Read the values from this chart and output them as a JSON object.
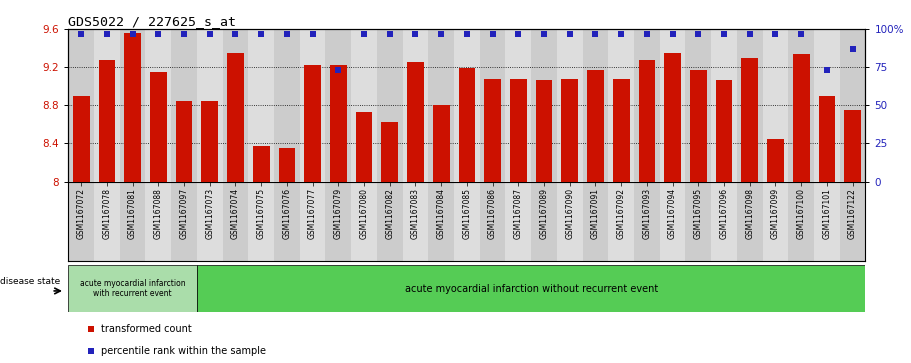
{
  "title": "GDS5022 / 227625_s_at",
  "samples": [
    "GSM1167072",
    "GSM1167078",
    "GSM1167081",
    "GSM1167088",
    "GSM1167097",
    "GSM1167073",
    "GSM1167074",
    "GSM1167075",
    "GSM1167076",
    "GSM1167077",
    "GSM1167079",
    "GSM1167080",
    "GSM1167082",
    "GSM1167083",
    "GSM1167084",
    "GSM1167085",
    "GSM1167086",
    "GSM1167087",
    "GSM1167089",
    "GSM1167090",
    "GSM1167091",
    "GSM1167092",
    "GSM1167093",
    "GSM1167094",
    "GSM1167095",
    "GSM1167096",
    "GSM1167098",
    "GSM1167099",
    "GSM1167100",
    "GSM1167101",
    "GSM1167122"
  ],
  "bar_values": [
    8.9,
    9.27,
    9.56,
    9.15,
    8.85,
    8.84,
    9.35,
    8.37,
    8.35,
    9.22,
    9.22,
    8.73,
    8.62,
    9.25,
    8.8,
    9.19,
    9.08,
    9.08,
    9.07,
    9.08,
    9.17,
    9.08,
    9.27,
    9.35,
    9.17,
    9.07,
    9.3,
    8.45,
    9.34,
    8.9,
    8.75
  ],
  "percentile_values": [
    97,
    97,
    97,
    97,
    97,
    97,
    97,
    97,
    97,
    97,
    73,
    97,
    97,
    97,
    97,
    97,
    97,
    97,
    97,
    97,
    97,
    97,
    97,
    97,
    97,
    97,
    97,
    97,
    97,
    73,
    87
  ],
  "bar_color": "#cc1100",
  "dot_color": "#2222bb",
  "ylim_left": [
    8.0,
    9.6
  ],
  "ylim_right": [
    0,
    100
  ],
  "yticks_left": [
    8.0,
    8.4,
    8.8,
    9.2,
    9.6
  ],
  "yticks_right": [
    0,
    25,
    50,
    75,
    100
  ],
  "ytick_labels_left": [
    "8",
    "8.4",
    "8.8",
    "9.2",
    "9.6"
  ],
  "ytick_labels_right": [
    "0",
    "25",
    "50",
    "75",
    "100%"
  ],
  "disease_group1_label": "acute myocardial infarction\nwith recurrent event",
  "disease_group1_count": 5,
  "disease_group1_color": "#aaddaa",
  "disease_group2_label": "acute myocardial infarction without recurrent event",
  "disease_group2_count": 26,
  "disease_group2_color": "#55cc55",
  "disease_state_label": "disease state",
  "legend_red_label": "transformed count",
  "legend_blue_label": "percentile rank within the sample",
  "col_color_even": "#cccccc",
  "col_color_odd": "#dddddd"
}
